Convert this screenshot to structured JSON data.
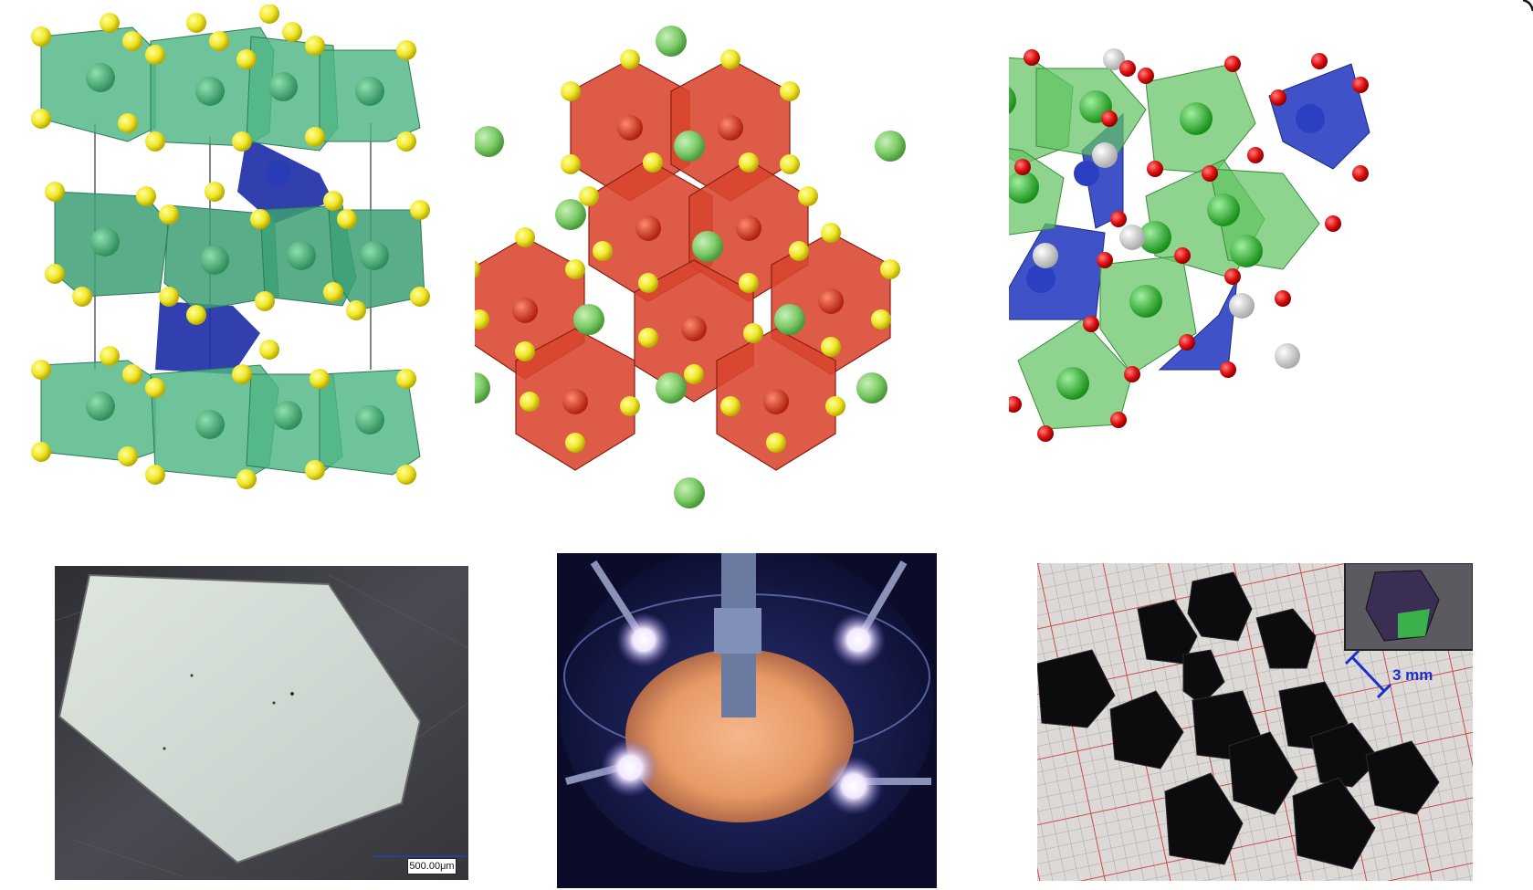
{
  "panels": {
    "structure_a": {
      "polyhedra_color": "#4fb684",
      "center_color": "#3ca06b",
      "tetra_color": "#1f2fa8",
      "anion_color": "#f0e62a"
    },
    "structure_b": {
      "octa_color": "#d9442e",
      "center_color": "#c22a1e",
      "cation_color": "#7fcc6a",
      "anion_color": "#f0e62a"
    },
    "structure_c": {
      "octa_color": "#62c462",
      "tetra_color": "#2a3fc2",
      "anion_color": "#e01010",
      "cation_color": "#2ab82a",
      "h_color": "#eeeeee"
    },
    "micrograph": {
      "scale_label": "500.00μm"
    },
    "furnace_photo": {},
    "crystals_photo": {
      "scale_label": "3 mm"
    }
  }
}
